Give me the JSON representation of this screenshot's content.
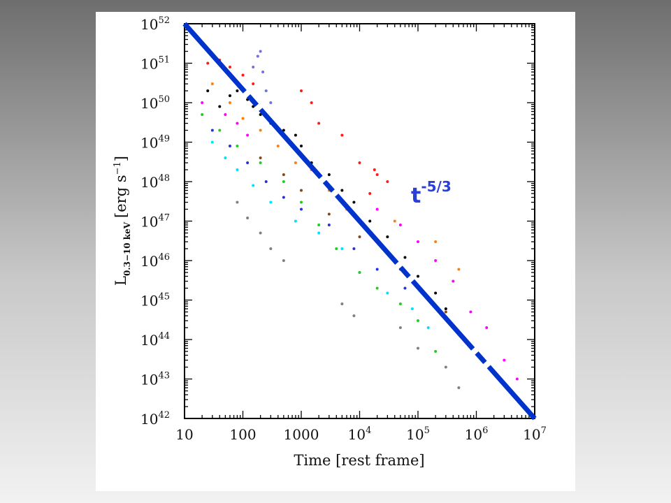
{
  "chart_data": {
    "type": "scatter",
    "title": "",
    "xlabel": "Time [rest frame]",
    "ylabel": "L",
    "ylabel_subscript": "0.3−10 keV",
    "ylabel_units": "[erg s",
    "ylabel_units_exp": "−1",
    "ylabel_units_end": "]",
    "x_scale": "log",
    "y_scale": "log",
    "xlim": [
      10,
      10000000
    ],
    "ylim": [
      1e+42,
      1e+52
    ],
    "x_ticks": [
      {
        "value": 10,
        "base": "10",
        "exp": ""
      },
      {
        "value": 100,
        "base": "100",
        "exp": ""
      },
      {
        "value": 1000,
        "base": "1000",
        "exp": ""
      },
      {
        "value": 10000,
        "base": "10",
        "exp": "4"
      },
      {
        "value": 100000,
        "base": "10",
        "exp": "5"
      },
      {
        "value": 1000000,
        "base": "10",
        "exp": "6"
      },
      {
        "value": 10000000,
        "base": "10",
        "exp": "7"
      }
    ],
    "y_ticks": [
      {
        "value": 1e+42,
        "base": "10",
        "exp": "42"
      },
      {
        "value": 1e+43,
        "base": "10",
        "exp": "43"
      },
      {
        "value": 1e+44,
        "base": "10",
        "exp": "44"
      },
      {
        "value": 1e+45,
        "base": "10",
        "exp": "45"
      },
      {
        "value": 1e+46,
        "base": "10",
        "exp": "46"
      },
      {
        "value": 1e+47,
        "base": "10",
        "exp": "47"
      },
      {
        "value": 1e+48,
        "base": "10",
        "exp": "48"
      },
      {
        "value": 1e+49,
        "base": "10",
        "exp": "49"
      },
      {
        "value": 1e+50,
        "base": "10",
        "exp": "50"
      },
      {
        "value": 1e+51,
        "base": "10",
        "exp": "51"
      },
      {
        "value": 1e+52,
        "base": "10",
        "exp": "52"
      }
    ],
    "reference_line": {
      "x": [
        10,
        10000000
      ],
      "y": [
        1e+52,
        1e+42
      ],
      "slope_label_base": "t",
      "slope_label_exp": "-5/3",
      "color": "#0033cc",
      "style": "dashed"
    },
    "series": [
      {
        "color": "#000000",
        "points": [
          [
            25,
            2e+50
          ],
          [
            40,
            8e+49
          ],
          [
            60,
            1.5e+50
          ],
          [
            80,
            2e+50
          ],
          [
            120,
            1.2e+50
          ],
          [
            150,
            8e+49
          ],
          [
            200,
            5e+49
          ],
          [
            300,
            3e+49
          ],
          [
            500,
            2e+49
          ],
          [
            800,
            1.5e+49
          ],
          [
            1000,
            8e+48
          ],
          [
            1500,
            3e+48
          ],
          [
            3000,
            1.5e+48
          ],
          [
            5000,
            6e+47
          ],
          [
            8000,
            3e+47
          ],
          [
            15000,
            1e+47
          ],
          [
            30000,
            4e+46
          ],
          [
            60000,
            1.2e+46
          ],
          [
            100000,
            4e+45
          ],
          [
            200000,
            1.5e+45
          ],
          [
            300000,
            6e+44
          ]
        ]
      },
      {
        "color": "#ff1a1a",
        "points": [
          [
            25,
            1e+51
          ],
          [
            40,
            1.2e+51
          ],
          [
            60,
            8e+50
          ],
          [
            100,
            5e+50
          ],
          [
            150,
            3e+50
          ],
          [
            1000,
            2e+50
          ],
          [
            1500,
            1e+50
          ],
          [
            2000,
            3e+49
          ],
          [
            5000,
            1.5e+49
          ],
          [
            10000,
            3e+48
          ],
          [
            20000,
            1.5e+48
          ],
          [
            30000,
            1e+48
          ],
          [
            15000,
            5e+47
          ],
          [
            18000,
            2e+48
          ]
        ]
      },
      {
        "color": "#7070e6",
        "points": [
          [
            150,
            8e+50
          ],
          [
            180,
            1.5e+51
          ],
          [
            200,
            2e+51
          ],
          [
            220,
            6e+50
          ],
          [
            250,
            2e+50
          ],
          [
            300,
            1e+50
          ]
        ]
      },
      {
        "color": "#ff00ff",
        "points": [
          [
            20,
            1e+50
          ],
          [
            50,
            5e+49
          ],
          [
            80,
            3e+49
          ],
          [
            120,
            1.5e+49
          ],
          [
            1500,
            2e+48
          ],
          [
            5000,
            3e+47
          ],
          [
            20000,
            2e+47
          ],
          [
            50000,
            8e+46
          ],
          [
            100000,
            3e+46
          ],
          [
            200000,
            1e+46
          ],
          [
            400000,
            3e+45
          ],
          [
            800000,
            5e+44
          ],
          [
            1500000,
            2e+44
          ],
          [
            3000000,
            3e+43
          ],
          [
            5000000,
            1e+43
          ]
        ]
      },
      {
        "color": "#ff7f0e",
        "points": [
          [
            30,
            3e+50
          ],
          [
            60,
            1e+50
          ],
          [
            100,
            4e+49
          ],
          [
            200,
            2e+49
          ],
          [
            400,
            8e+48
          ],
          [
            800,
            3e+48
          ],
          [
            1500,
            2e+48
          ],
          [
            3000,
            6e+47
          ],
          [
            6000,
            2e+47
          ],
          [
            40000,
            1e+47
          ],
          [
            200000,
            3e+46
          ],
          [
            500000,
            6e+45
          ]
        ]
      },
      {
        "color": "#00e0ff",
        "points": [
          [
            30,
            1e+49
          ],
          [
            50,
            4e+48
          ],
          [
            80,
            2e+48
          ],
          [
            150,
            8e+47
          ],
          [
            300,
            3e+47
          ],
          [
            800,
            1e+47
          ],
          [
            2000,
            5e+46
          ],
          [
            5000,
            2e+46
          ],
          [
            10000,
            5e+45
          ],
          [
            30000,
            1.5e+45
          ],
          [
            80000,
            6e+44
          ],
          [
            150000,
            2e+44
          ]
        ]
      },
      {
        "color": "#22cc22",
        "points": [
          [
            20,
            5e+49
          ],
          [
            40,
            2e+49
          ],
          [
            80,
            8e+48
          ],
          [
            200,
            3e+48
          ],
          [
            500,
            1e+48
          ],
          [
            1000,
            3e+47
          ],
          [
            2000,
            8e+46
          ],
          [
            4000,
            2e+46
          ],
          [
            10000,
            5e+45
          ],
          [
            20000,
            2e+45
          ],
          [
            50000,
            8e+44
          ],
          [
            100000,
            3e+44
          ],
          [
            200000,
            5e+43
          ]
        ]
      },
      {
        "color": "#2233dd",
        "points": [
          [
            30,
            2e+49
          ],
          [
            60,
            8e+48
          ],
          [
            120,
            3e+48
          ],
          [
            250,
            1e+48
          ],
          [
            500,
            4e+47
          ],
          [
            1000,
            2e+47
          ],
          [
            3000,
            8e+46
          ],
          [
            8000,
            2e+46
          ],
          [
            20000,
            6e+45
          ],
          [
            60000,
            2e+45
          ]
        ]
      },
      {
        "color": "#808080",
        "points": [
          [
            80,
            3e+47
          ],
          [
            120,
            1.2e+47
          ],
          [
            200,
            5e+46
          ],
          [
            300,
            2e+46
          ],
          [
            500,
            1e+46
          ],
          [
            5000,
            8e+44
          ],
          [
            8000,
            4e+44
          ],
          [
            50000,
            2e+44
          ],
          [
            100000,
            6e+43
          ],
          [
            300000,
            2e+43
          ],
          [
            500000,
            6e+42
          ]
        ]
      },
      {
        "color": "#8b4513",
        "points": [
          [
            200,
            4e+48
          ],
          [
            500,
            1.5e+48
          ],
          [
            1000,
            6e+47
          ],
          [
            3000,
            1.5e+47
          ],
          [
            10000,
            4e+46
          ],
          [
            50000,
            6e+45
          ],
          [
            100000,
            2e+45
          ],
          [
            300000,
            5e+44
          ]
        ]
      }
    ]
  }
}
